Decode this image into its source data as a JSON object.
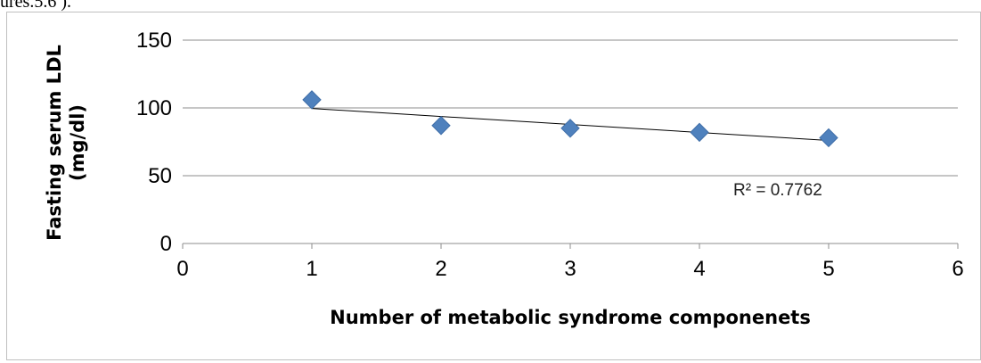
{
  "caption_fragment": "ures.5.6 ).",
  "chart_data": {
    "type": "scatter",
    "x": [
      1,
      2,
      3,
      4,
      5
    ],
    "y": [
      106,
      87,
      85,
      82,
      78
    ],
    "xlim": [
      0,
      6
    ],
    "ylim": [
      0,
      150
    ],
    "xticks": [
      "0",
      "1",
      "2",
      "3",
      "4",
      "5",
      "6"
    ],
    "yticks": [
      "0",
      "50",
      "100",
      "150"
    ],
    "xlabel": "Number of metabolic syndrome componenets",
    "ylabel_lines": [
      "Fasting serum LDL",
      "(mg/dl)"
    ],
    "grid": "horizontal",
    "marker_color": "#4F81BD",
    "trendline": {
      "type": "linear",
      "start": [
        1,
        99.6
      ],
      "end": [
        5,
        76.0
      ],
      "r2_label": "R² = 0.7762"
    }
  }
}
